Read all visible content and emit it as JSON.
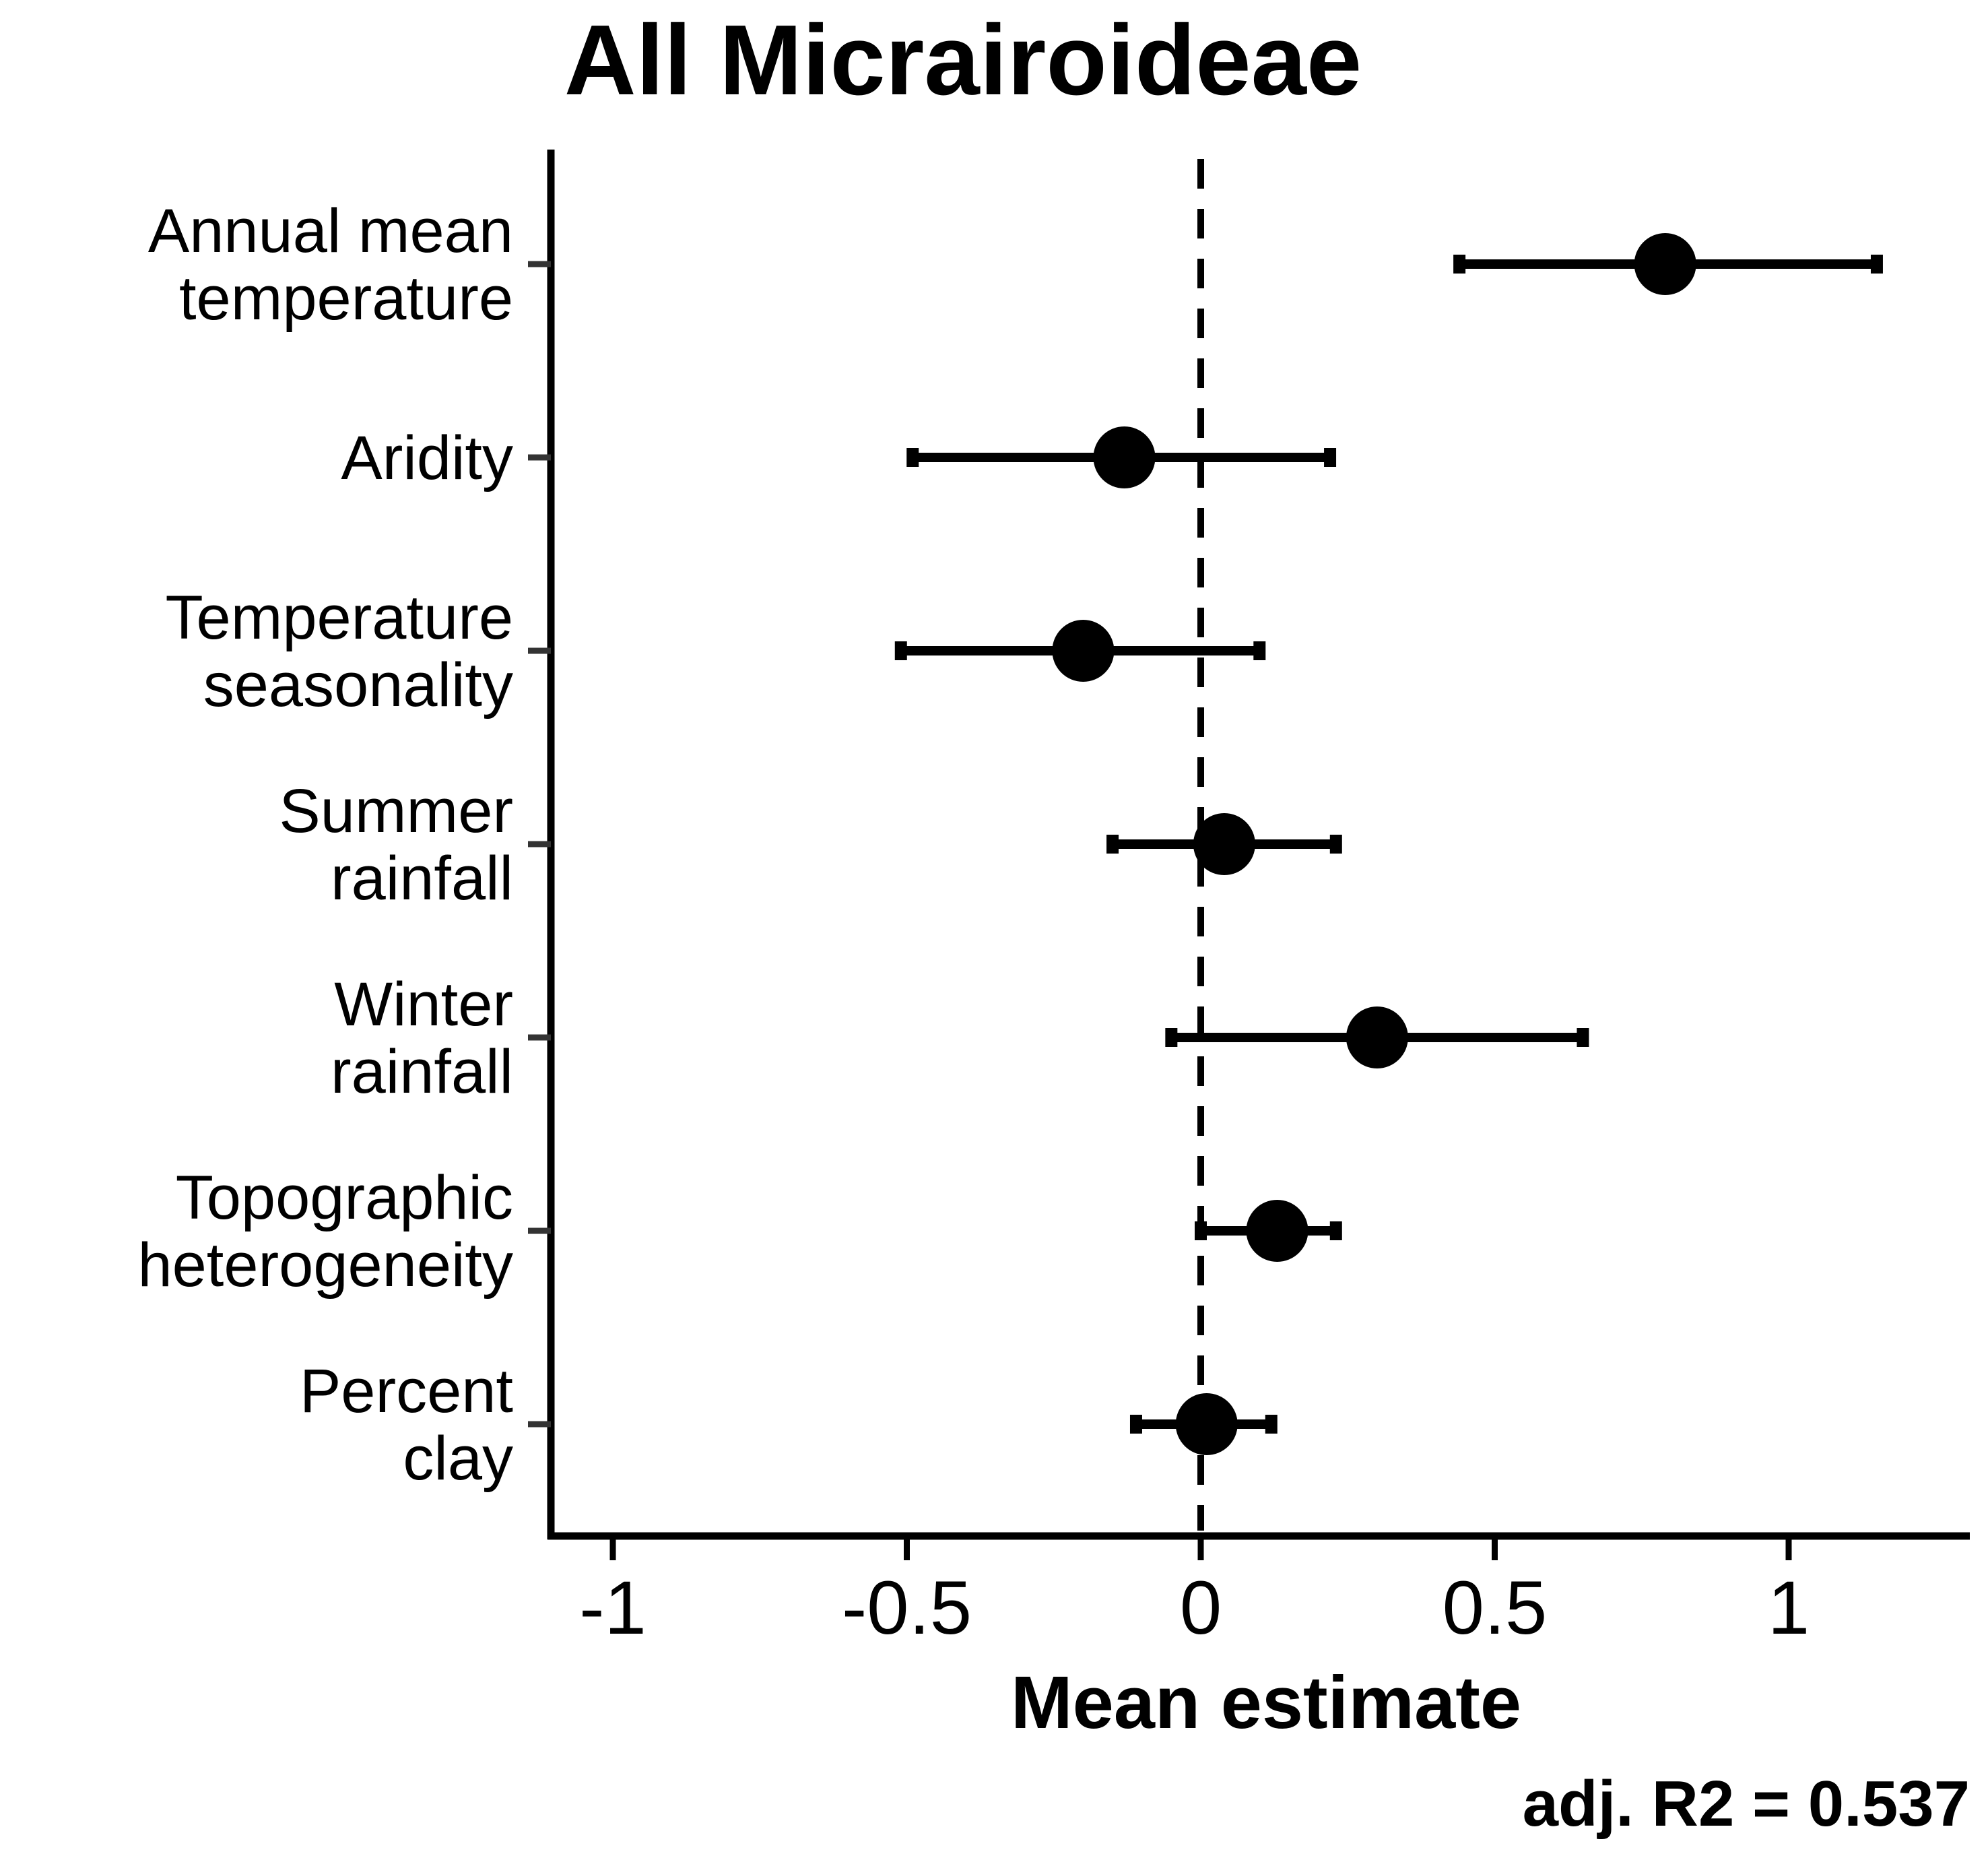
{
  "chart_data": {
    "type": "scatter",
    "title": "All Micrairoideae",
    "xlabel": "Mean estimate",
    "ylabel": "",
    "xlim": [
      -1.12,
      1.3
    ],
    "xticks": [
      -1,
      -0.5,
      0,
      0.5,
      1
    ],
    "xtick_labels": [
      "-1",
      "-0.5",
      "0",
      "0.5",
      "1"
    ],
    "reference_line": 0,
    "annotation": "adj. R2 = 0.537",
    "categories": [
      [
        "Annual mean",
        "temperature"
      ],
      [
        "Aridity"
      ],
      [
        "Temperature",
        "seasonality"
      ],
      [
        "Summer",
        "rainfall"
      ],
      [
        "Winter",
        "rainfall"
      ],
      [
        "Topographic",
        "heterogeneity"
      ],
      [
        "Percent",
        "clay"
      ]
    ],
    "points": [
      {
        "estimate": 0.79,
        "low": 0.44,
        "high": 1.15
      },
      {
        "estimate": -0.13,
        "low": -0.49,
        "high": 0.22
      },
      {
        "estimate": -0.2,
        "low": -0.51,
        "high": 0.1
      },
      {
        "estimate": 0.04,
        "low": -0.15,
        "high": 0.23
      },
      {
        "estimate": 0.3,
        "low": -0.05,
        "high": 0.65
      },
      {
        "estimate": 0.13,
        "low": 0.0,
        "high": 0.23
      },
      {
        "estimate": 0.01,
        "low": -0.11,
        "high": 0.12
      }
    ],
    "colors": {
      "points": "#000000",
      "axes": "#000000",
      "reference": "#000000"
    }
  }
}
